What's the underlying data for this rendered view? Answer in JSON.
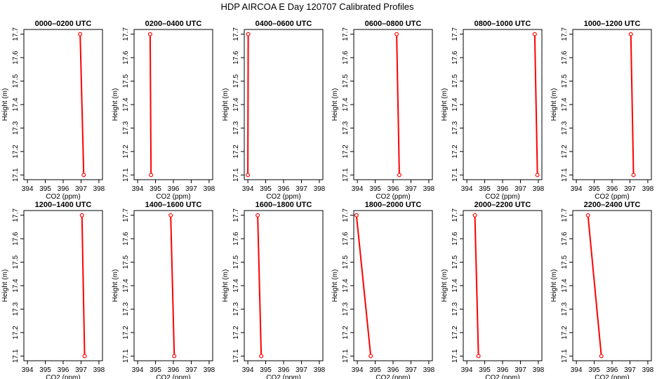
{
  "figure": {
    "title": "HDP AIRCOA E  Day 120707  Calibrated Profiles",
    "xlabel": "CO2 (ppm)",
    "ylabel": "Height (m)",
    "x_ticks": [
      "394",
      "395",
      "396",
      "397",
      "398"
    ],
    "y_ticks": [
      "17.1",
      "17.2",
      "17.3",
      "17.4",
      "17.5",
      "17.6",
      "17.7"
    ],
    "line_color": "#ff0000",
    "marker_color": "#ff0000"
  },
  "chart_data": [
    {
      "type": "line",
      "title": "0000–0200 UTC",
      "xlabel": "CO2 (ppm)",
      "ylabel": "Height (m)",
      "xlim": [
        393.8,
        398.2
      ],
      "ylim": [
        17.08,
        17.72
      ],
      "x": [
        397.15,
        396.95
      ],
      "y": [
        17.1,
        17.7
      ],
      "grid": false
    },
    {
      "type": "line",
      "title": "0200–0400 UTC",
      "xlabel": "CO2 (ppm)",
      "ylabel": "Height (m)",
      "xlim": [
        393.8,
        398.2
      ],
      "ylim": [
        17.08,
        17.72
      ],
      "x": [
        394.75,
        394.7
      ],
      "y": [
        17.1,
        17.7
      ],
      "grid": false
    },
    {
      "type": "line",
      "title": "0400–0600 UTC",
      "xlabel": "CO2 (ppm)",
      "ylabel": "Height (m)",
      "xlim": [
        393.8,
        398.2
      ],
      "ylim": [
        17.08,
        17.72
      ],
      "x": [
        394.0,
        394.02
      ],
      "y": [
        17.1,
        17.7
      ],
      "grid": false
    },
    {
      "type": "line",
      "title": "0600–0800 UTC",
      "xlabel": "CO2 (ppm)",
      "ylabel": "Height (m)",
      "xlim": [
        393.8,
        398.2
      ],
      "ylim": [
        17.08,
        17.72
      ],
      "x": [
        396.35,
        396.2
      ],
      "y": [
        17.1,
        17.7
      ],
      "grid": false
    },
    {
      "type": "line",
      "title": "0800–1000 UTC",
      "xlabel": "CO2 (ppm)",
      "ylabel": "Height (m)",
      "xlim": [
        393.8,
        398.2
      ],
      "ylim": [
        17.08,
        17.72
      ],
      "x": [
        397.95,
        397.8
      ],
      "y": [
        17.1,
        17.7
      ],
      "grid": false
    },
    {
      "type": "line",
      "title": "1000–1200 UTC",
      "xlabel": "CO2 (ppm)",
      "ylabel": "Height (m)",
      "xlim": [
        393.8,
        398.2
      ],
      "ylim": [
        17.08,
        17.72
      ],
      "x": [
        397.2,
        397.05
      ],
      "y": [
        17.1,
        17.7
      ],
      "grid": false
    },
    {
      "type": "line",
      "title": "1200–1400 UTC",
      "xlabel": "CO2 (ppm)",
      "ylabel": "Height (m)",
      "xlim": [
        393.8,
        398.2
      ],
      "ylim": [
        17.08,
        17.72
      ],
      "x": [
        397.2,
        397.05
      ],
      "y": [
        17.1,
        17.7
      ],
      "grid": false
    },
    {
      "type": "line",
      "title": "1400–1600 UTC",
      "xlabel": "CO2 (ppm)",
      "ylabel": "Height (m)",
      "xlim": [
        393.8,
        398.2
      ],
      "ylim": [
        17.08,
        17.72
      ],
      "x": [
        396.05,
        395.85
      ],
      "y": [
        17.1,
        17.7
      ],
      "grid": false
    },
    {
      "type": "line",
      "title": "1600–1800 UTC",
      "xlabel": "CO2 (ppm)",
      "ylabel": "Height (m)",
      "xlim": [
        393.8,
        398.2
      ],
      "ylim": [
        17.08,
        17.72
      ],
      "x": [
        394.75,
        394.55
      ],
      "y": [
        17.1,
        17.7
      ],
      "grid": false
    },
    {
      "type": "line",
      "title": "1800–2000 UTC",
      "xlabel": "CO2 (ppm)",
      "ylabel": "Height (m)",
      "xlim": [
        393.8,
        398.2
      ],
      "ylim": [
        17.08,
        17.72
      ],
      "x": [
        394.75,
        393.95
      ],
      "y": [
        17.1,
        17.7
      ],
      "grid": false
    },
    {
      "type": "line",
      "title": "2000–2200 UTC",
      "xlabel": "CO2 (ppm)",
      "ylabel": "Height (m)",
      "xlim": [
        393.8,
        398.2
      ],
      "ylim": [
        17.08,
        17.72
      ],
      "x": [
        394.65,
        394.45
      ],
      "y": [
        17.1,
        17.7
      ],
      "grid": false
    },
    {
      "type": "line",
      "title": "2200–2400 UTC",
      "xlabel": "CO2 (ppm)",
      "ylabel": "Height (m)",
      "xlim": [
        393.8,
        398.2
      ],
      "ylim": [
        17.08,
        17.72
      ],
      "x": [
        395.4,
        394.65
      ],
      "y": [
        17.1,
        17.7
      ],
      "grid": false
    }
  ]
}
